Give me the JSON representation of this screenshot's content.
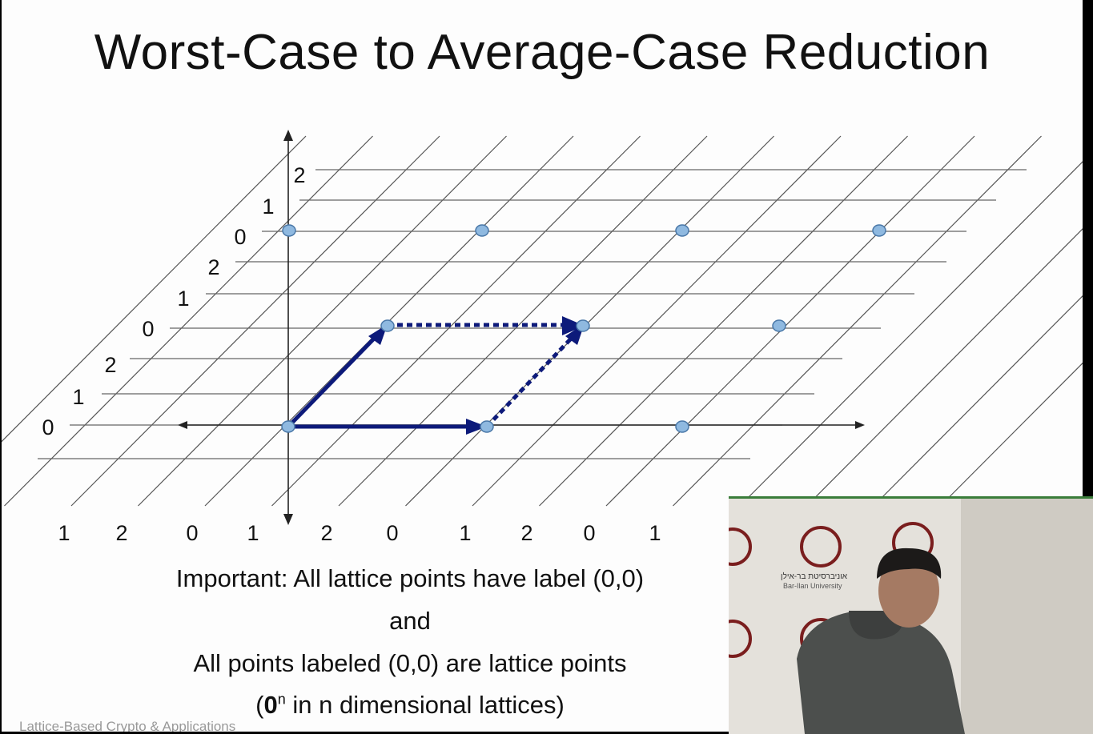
{
  "slide": {
    "title": "Worst-Case to Average-Case Reduction",
    "caption_line1": "Important:  All lattice points have label (0,0)",
    "caption_line2": "and",
    "caption_line3": "All points labeled (0,0) are lattice points",
    "caption_line4_bold": "0",
    "caption_line4_sup": "n",
    "caption_line4_rest": " in n dimensional lattices)",
    "caption_line4_open": "(",
    "footer": "Lattice-Based Crypto & Applications"
  },
  "diagram": {
    "row_labels": [
      "0",
      "1",
      "2",
      "0",
      "1",
      "2",
      "0",
      "1",
      "2"
    ],
    "column_labels": [
      "1",
      "2",
      "0",
      "1",
      "2",
      "0",
      "1",
      "2",
      "0",
      "1"
    ],
    "lattice_point_color": "#8fb9e0",
    "arrow_color": "#0d1a7a"
  },
  "video_overlay": {
    "logo_text": "Bar-Ilan University",
    "hebrew_text": "אוניברסיטת בר-אילן"
  }
}
